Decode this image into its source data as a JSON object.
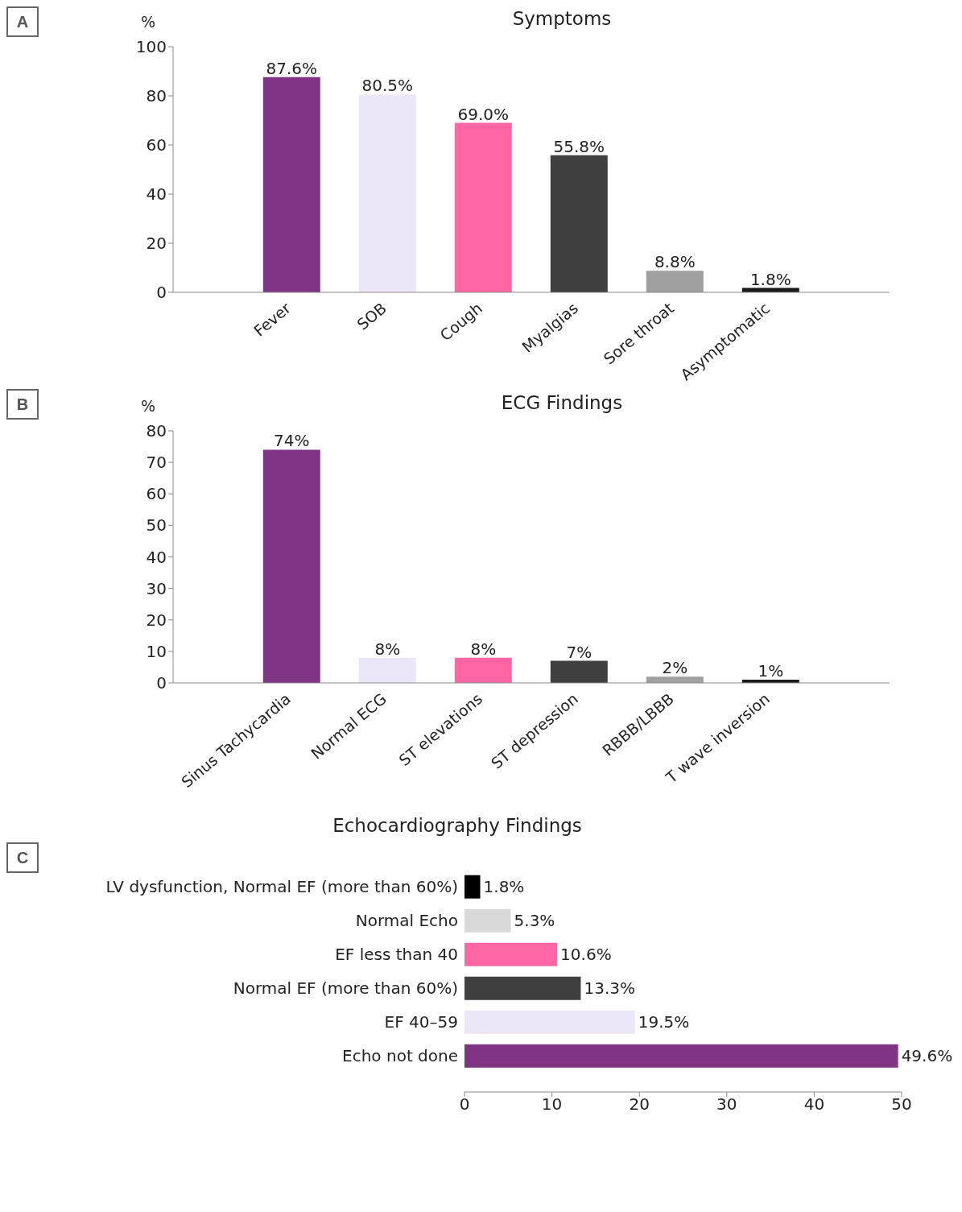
{
  "chart_data": [
    {
      "type": "bar",
      "title": "Symptoms",
      "ylabel": "%",
      "annotations": [
        "A"
      ],
      "categories": [
        "Fever",
        "SOB",
        "Cough",
        "Myalgias",
        "Sore throat",
        "Asymptomatic"
      ],
      "values": [
        87.6,
        80.5,
        69.0,
        55.8,
        8.8,
        1.8
      ],
      "colors": [
        "#7f3584",
        "#ede5f8",
        "#ff66a3",
        "#404040",
        "#a0a0a0",
        "#1a1a1a"
      ],
      "value_labels": [
        "87.6%",
        "80.5%",
        "69.0%",
        "55.8%",
        "8.8%",
        "1.8%"
      ],
      "ylim": [
        0,
        100
      ],
      "yticks": [
        0,
        20,
        40,
        60,
        80,
        100
      ]
    },
    {
      "type": "bar",
      "title": "ECG Findings",
      "ylabel": "%",
      "annotations": [
        "B"
      ],
      "categories": [
        "Sinus Tachycardia",
        "Normal ECG",
        "ST elevations",
        "ST depression",
        "RBBB/LBBB",
        "T wave inversion"
      ],
      "values": [
        74,
        8,
        8,
        7,
        2,
        1
      ],
      "colors": [
        "#7f3584",
        "#ede5f8",
        "#ff66a3",
        "#404040",
        "#a0a0a0",
        "#1a1a1a"
      ],
      "value_labels": [
        "74%",
        "8%",
        "8%",
        "7%",
        "2%",
        "1%"
      ],
      "ylim": [
        0,
        80
      ],
      "yticks": [
        0,
        10,
        20,
        30,
        40,
        50,
        60,
        70,
        80
      ]
    },
    {
      "type": "bar",
      "orientation": "horizontal",
      "title": "Echocardiography Findings",
      "annotations": [
        "C"
      ],
      "categories": [
        "LV dysfunction, Normal EF (more than 60%)",
        "Normal Echo",
        "EF less than 40",
        "Normal EF (more than 60%)",
        "EF 40–59",
        "Echo not done"
      ],
      "values": [
        1.8,
        5.3,
        10.6,
        13.3,
        19.5,
        49.6
      ],
      "colors": [
        "#000000",
        "#d9d9d9",
        "#ff66a3",
        "#404040",
        "#ede5f8",
        "#7f3584"
      ],
      "value_labels": [
        "1.8%",
        "5.3%",
        "10.6%",
        "13.3%",
        "19.5%",
        "49.6%"
      ],
      "xlim": [
        0,
        50
      ],
      "xticks": [
        0,
        10,
        20,
        30,
        40,
        50
      ]
    }
  ]
}
